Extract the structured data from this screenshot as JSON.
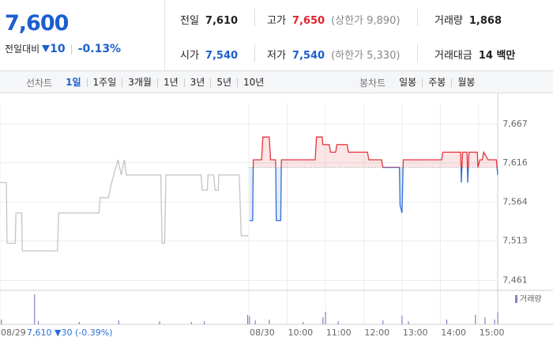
{
  "header": {
    "price": "7,600",
    "change_label": "전일대비",
    "change": "10",
    "change_pct": "-0.13%",
    "stats": [
      {
        "label": "전일",
        "value": "7,610"
      },
      {
        "label": "고가",
        "value": "7,650",
        "note": "(상한가 9,890)"
      },
      {
        "label": "거래량",
        "value": "1,868"
      },
      {
        "label": "시가",
        "value": "7,540"
      },
      {
        "label": "저가",
        "value": "7,540",
        "note": "(하한가 5,330)"
      },
      {
        "label": "거래대금",
        "value": "14 백만"
      }
    ]
  },
  "tabs": {
    "line_label": "선차트",
    "line_periods": [
      "1일",
      "1주일",
      "3개월",
      "1년",
      "3년",
      "5년",
      "10년"
    ],
    "line_selected": 0,
    "candle_label": "봉차트",
    "candle_periods": [
      "일봉",
      "주봉",
      "월봉"
    ]
  },
  "chart_data": {
    "type": "line",
    "xlim": [
      0,
      780
    ],
    "ylim": [
      7448,
      7695
    ],
    "xticks": [
      {
        "value": 0,
        "label": "08/29"
      },
      {
        "value": 390,
        "label": "08/30"
      },
      {
        "value": 450,
        "label": "10:00"
      },
      {
        "value": 510,
        "label": "11:00"
      },
      {
        "value": 570,
        "label": "12:00"
      },
      {
        "value": 630,
        "label": "13:00"
      },
      {
        "value": 690,
        "label": "14:00"
      },
      {
        "value": 750,
        "label": "15:00"
      }
    ],
    "yticks": [
      {
        "value": 7461,
        "label": "7,461"
      },
      {
        "value": 7513,
        "label": "7,513"
      },
      {
        "value": 7564,
        "label": "7,564"
      },
      {
        "value": 7616,
        "label": "7,616"
      },
      {
        "value": 7667,
        "label": "7,667"
      }
    ],
    "grid": true,
    "baseline": 7610,
    "color_up": "#e5333c",
    "color_down": "#2d6ed6",
    "annotation": "7,610 ▼30 (-0.39%)",
    "series": [
      {
        "color": "#c4c4c4",
        "x": [
          0,
          10,
          11,
          24,
          25,
          34,
          35,
          90,
          92,
          155,
          157,
          170,
          175,
          185,
          190,
          195,
          198,
          252,
          254,
          258,
          260,
          315,
          317,
          325,
          326,
          335,
          337,
          342,
          343,
          375,
          378,
          389
        ],
        "values": [
          7590,
          7590,
          7510,
          7510,
          7550,
          7550,
          7500,
          7500,
          7550,
          7550,
          7570,
          7570,
          7590,
          7620,
          7600,
          7620,
          7600,
          7600,
          7510,
          7510,
          7600,
          7600,
          7580,
          7580,
          7600,
          7600,
          7580,
          7580,
          7600,
          7600,
          7520,
          7520
        ]
      },
      {
        "color": "#e5333c",
        "x": [
          391,
          396,
          397,
          410,
          412,
          422,
          424,
          432,
          433,
          440,
          441,
          494,
          496,
          505,
          506,
          516,
          518,
          526,
          528,
          544,
          546,
          576,
          578,
          598,
          600,
          626,
          627,
          630,
          632,
          692,
          694,
          722,
          723,
          725,
          732,
          733,
          735,
          748,
          749,
          752,
          756,
          758,
          765,
          778,
          780
        ],
        "values": [
          7540,
          7540,
          7620,
          7620,
          7650,
          7650,
          7620,
          7620,
          7540,
          7540,
          7620,
          7620,
          7650,
          7650,
          7640,
          7640,
          7630,
          7630,
          7640,
          7640,
          7630,
          7630,
          7620,
          7620,
          7610,
          7610,
          7560,
          7550,
          7620,
          7620,
          7630,
          7630,
          7590,
          7630,
          7630,
          7590,
          7630,
          7630,
          7610,
          7620,
          7620,
          7630,
          7620,
          7620,
          7600
        ]
      }
    ],
    "volume": {
      "name": "거래량",
      "color": "#8a7fc4",
      "ylim": [
        0,
        400
      ],
      "x": [
        2,
        54,
        60,
        124,
        186,
        250,
        300,
        320,
        388,
        391,
        400,
        422,
        475,
        506,
        510,
        530,
        600,
        630,
        640,
        700,
        745,
        760,
        775,
        780
      ],
      "values": [
        60,
        380,
        40,
        30,
        50,
        40,
        30,
        40,
        120,
        100,
        50,
        60,
        30,
        90,
        160,
        40,
        50,
        110,
        40,
        60,
        120,
        90,
        60,
        150
      ]
    }
  }
}
